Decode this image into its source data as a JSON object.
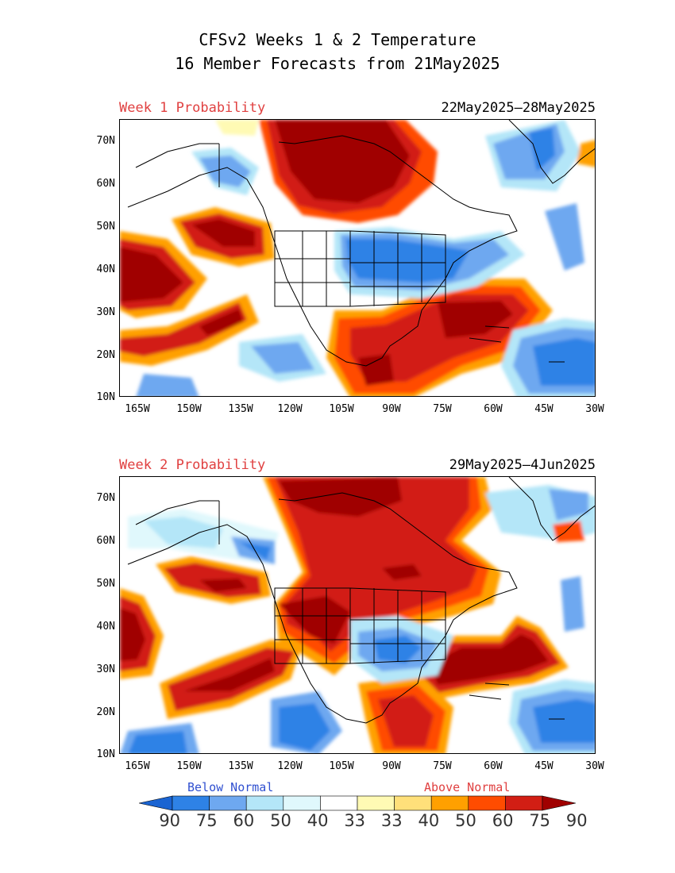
{
  "title": {
    "line1": "CFSv2 Weeks 1 & 2 Temperature",
    "line2": "16 Member Forecasts from 21May2025"
  },
  "panels": [
    {
      "label": "Week 1 Probability",
      "dates": "22May2025—28May2025"
    },
    {
      "label": "Week 2 Probability",
      "dates": "29May2025—4Jun2025"
    }
  ],
  "axes": {
    "lat_labels": [
      "70N",
      "60N",
      "50N",
      "40N",
      "30N",
      "20N",
      "10N"
    ],
    "lon_labels": [
      "165W",
      "150W",
      "135W",
      "120W",
      "105W",
      "90W",
      "75W",
      "60W",
      "45W",
      "30W"
    ]
  },
  "legend": {
    "below_label": "Below Normal",
    "above_label": "Above Normal",
    "values": [
      "90",
      "75",
      "60",
      "50",
      "40",
      "33",
      "33",
      "40",
      "50",
      "60",
      "75",
      "90"
    ],
    "colors": [
      "#1a64d2",
      "#2e82e6",
      "#6ea8f0",
      "#b4e6f8",
      "#e0f8fc",
      "#ffffff",
      "#fffab4",
      "#ffe07a",
      "#ffa000",
      "#ff4c00",
      "#d21e14",
      "#a00000"
    ]
  },
  "colors": {
    "dark_red": "#a00000",
    "red": "#d21e14",
    "orange_red": "#ff4c00",
    "orange": "#ffa000",
    "yellow": "#ffe07a",
    "pale_yellow": "#fffab4",
    "pale_cyan": "#e0f8fc",
    "light_cyan": "#b4e6f8",
    "light_blue": "#6ea8f0",
    "blue": "#2e82e6",
    "dark_blue": "#1a64d2"
  }
}
